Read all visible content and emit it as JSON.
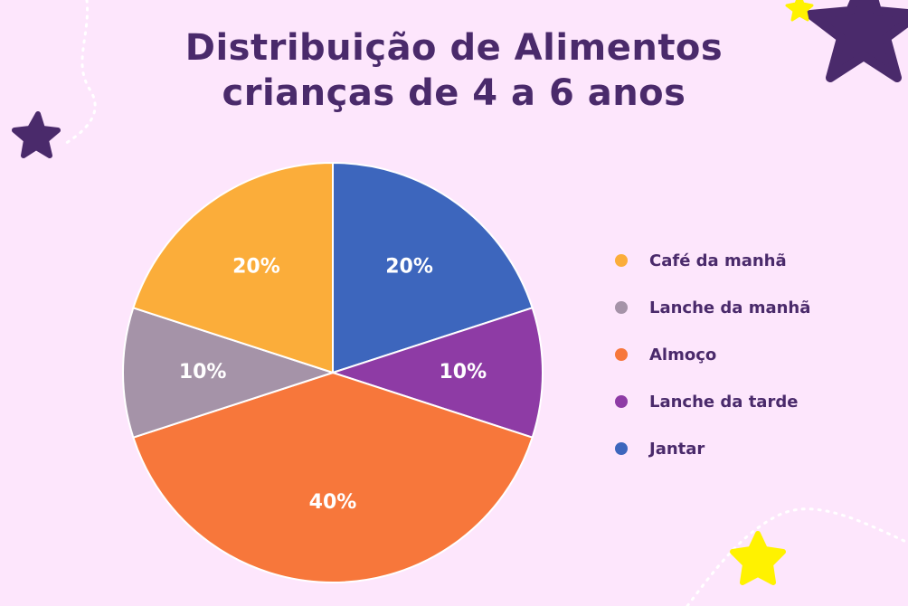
{
  "title": {
    "line1": "Distribuição de Alimentos",
    "line2": "crianças de 4 a 6 anos"
  },
  "colors": {
    "background": "#fde6fc",
    "title": "#4a2a6b",
    "star_dark": "#4a2a6b",
    "star_yellow": "#fff200"
  },
  "chart_data": {
    "type": "pie",
    "title": "Distribuição de Alimentos crianças de 4 a 6 anos",
    "slices": [
      {
        "label": "Café da manhã",
        "display": "20%",
        "value": 20,
        "color": "#fbad3a"
      },
      {
        "label": "Lanche da manhã",
        "display": "10%",
        "value": 10,
        "color": "#a593a8"
      },
      {
        "label": "Almoço",
        "display": "40%",
        "value": 40,
        "color": "#f7773b"
      },
      {
        "label": "Lanche da tarde",
        "display": "10%",
        "value": 10,
        "color": "#8e3ba5"
      },
      {
        "label": "Jantar",
        "display": "20%",
        "value": 20,
        "color": "#3d66bd"
      }
    ],
    "legend_position": "right"
  }
}
